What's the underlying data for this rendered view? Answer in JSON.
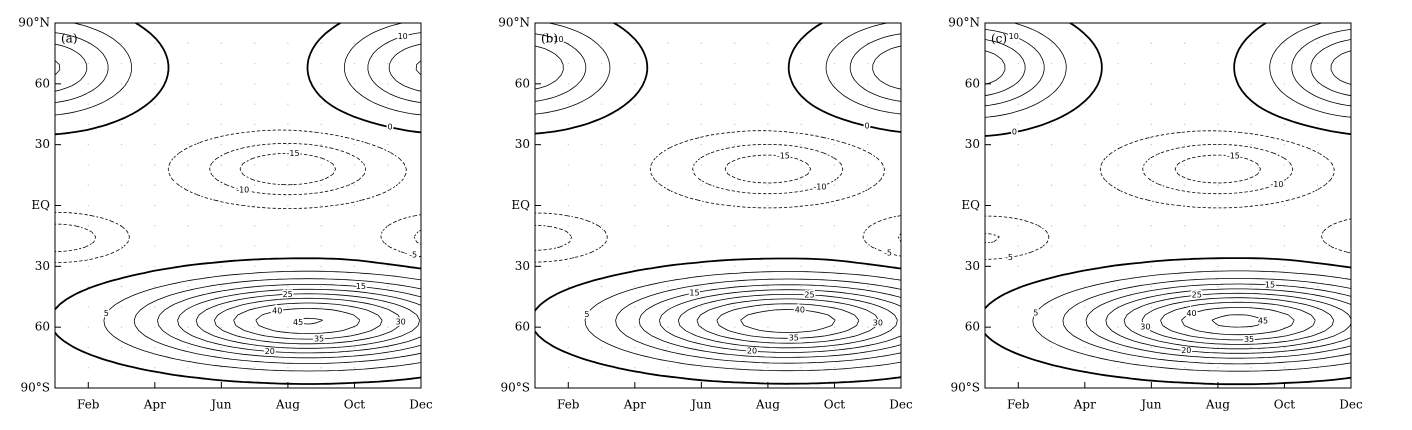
{
  "chart_data": [
    {
      "type": "contour",
      "label": "(a)",
      "categories": [
        "Feb",
        "Apr",
        "Jun",
        "Aug",
        "Oct",
        "Dec"
      ],
      "yticks": [
        {
          "value": 90,
          "label": "90°N"
        },
        60,
        30,
        {
          "value": 0,
          "label": "EQ"
        },
        {
          "value": -30,
          "label": "30"
        },
        {
          "value": -60,
          "label": "60"
        },
        {
          "value": -90,
          "label": "90°S"
        }
      ],
      "levels": [
        -15,
        -10,
        -5,
        0,
        5,
        10,
        15,
        20,
        25,
        30,
        35,
        40,
        45
      ]
    },
    {
      "type": "contour",
      "label": "(b)",
      "categories": [
        "Feb",
        "Apr",
        "Jun",
        "Aug",
        "Oct",
        "Dec"
      ],
      "yticks": [
        {
          "value": 90,
          "label": "90°N"
        },
        60,
        30,
        {
          "value": 0,
          "label": "EQ"
        },
        {
          "value": -30,
          "label": "30"
        },
        {
          "value": -60,
          "label": "60"
        },
        {
          "value": -90,
          "label": "90°S"
        }
      ],
      "levels": [
        -15,
        -10,
        -5,
        0,
        5,
        10,
        15,
        20,
        25,
        30,
        35,
        40,
        45
      ]
    },
    {
      "type": "contour",
      "label": "(c)",
      "categories": [
        "Feb",
        "Apr",
        "Jun",
        "Aug",
        "Oct",
        "Dec"
      ],
      "yticks": [
        {
          "value": 90,
          "label": "90°N"
        },
        60,
        30,
        {
          "value": 0,
          "label": "EQ"
        },
        {
          "value": -30,
          "label": "30"
        },
        {
          "value": -60,
          "label": "60"
        },
        {
          "value": -90,
          "label": "90°S"
        }
      ],
      "levels": [
        -15,
        -10,
        -5,
        0,
        5,
        10,
        15,
        20,
        25,
        30,
        35,
        40,
        45
      ]
    }
  ]
}
